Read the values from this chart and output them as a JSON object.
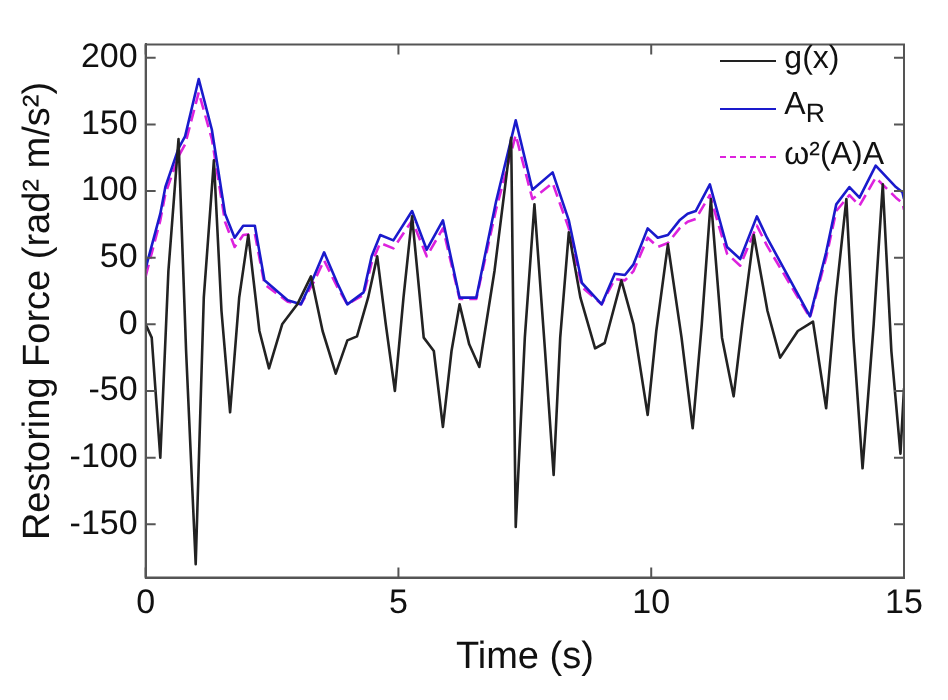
{
  "chart_data": {
    "type": "line",
    "xlabel": "Time (s)",
    "ylabel": "Restoring Force (rad² m/s²)",
    "xlim": [
      0,
      15
    ],
    "xticks": [
      0,
      5,
      10,
      15
    ],
    "ylim": [
      -190,
      210
    ],
    "yticks": [
      -150,
      -100,
      -50,
      0,
      50,
      100,
      150,
      200
    ],
    "grid": false,
    "legend": "top right",
    "marker": "none",
    "series": [
      {
        "name": "g(x)",
        "color": "#222222",
        "line_style": "solid",
        "x": [
          0,
          0.12,
          0.29,
          0.45,
          0.65,
          0.8,
          0.99,
          1.15,
          1.35,
          1.5,
          1.67,
          1.85,
          2.03,
          2.25,
          2.44,
          2.7,
          3.0,
          3.27,
          3.5,
          3.76,
          3.99,
          4.18,
          4.4,
          4.58,
          4.75,
          4.93,
          5.1,
          5.27,
          5.5,
          5.7,
          5.88,
          6.05,
          6.21,
          6.4,
          6.6,
          6.9,
          7.23,
          7.32,
          7.5,
          7.69,
          7.9,
          8.07,
          8.2,
          8.37,
          8.6,
          8.89,
          9.08,
          9.41,
          9.65,
          9.93,
          10.1,
          10.33,
          10.6,
          10.82,
          11.0,
          11.18,
          11.4,
          11.63,
          11.8,
          12.03,
          12.3,
          12.55,
          12.9,
          13.2,
          13.46,
          13.65,
          13.86,
          14.0,
          14.18,
          14.4,
          14.58,
          14.75,
          14.93,
          15
        ],
        "values": [
          0,
          -10,
          -100,
          40,
          139,
          -20,
          -180,
          20,
          123,
          10,
          -66,
          20,
          67,
          -5,
          -33,
          0,
          15,
          36,
          -5,
          -37,
          -12,
          -9,
          20,
          51,
          0,
          -50,
          20,
          81,
          -10,
          -20,
          -77,
          -20,
          15,
          -15,
          -32,
          40,
          140,
          -152,
          -10,
          90,
          -20,
          -113,
          -10,
          69,
          20,
          -18,
          -14,
          33,
          0,
          -68,
          -5,
          60,
          -10,
          -78,
          0,
          94,
          -10,
          -54,
          0,
          67,
          10,
          -25,
          -5,
          2,
          -63,
          20,
          94,
          -10,
          -108,
          0,
          105,
          -20,
          -97,
          -48
        ]
      },
      {
        "name": "A$_{R}$",
        "color": "#1a1acc",
        "line_style": "solid",
        "x": [
          0,
          0.29,
          0.39,
          0.65,
          0.78,
          1.05,
          1.31,
          1.57,
          1.76,
          1.93,
          2.16,
          2.35,
          2.81,
          3.07,
          3.33,
          3.53,
          3.79,
          3.99,
          4.31,
          4.47,
          4.64,
          4.9,
          5.27,
          5.56,
          5.88,
          6.21,
          6.54,
          6.93,
          7.32,
          7.65,
          8.05,
          8.37,
          8.63,
          9.02,
          9.28,
          9.48,
          9.65,
          9.93,
          10.13,
          10.33,
          10.56,
          10.72,
          10.88,
          11.16,
          11.5,
          11.76,
          12.09,
          12.29,
          13.14,
          13.46,
          13.66,
          13.92,
          14.12,
          14.44,
          14.84,
          14.97,
          15
        ],
        "values": [
          42,
          83,
          103,
          132,
          141,
          184,
          146,
          83,
          65,
          74,
          74,
          33,
          18,
          15,
          36,
          54,
          31,
          15,
          24,
          51,
          67,
          63,
          85,
          56,
          78,
          20,
          20,
          92,
          153,
          101,
          114,
          78,
          31,
          15,
          38,
          37,
          45,
          72,
          65,
          67,
          78,
          83,
          85,
          105,
          58,
          49,
          81,
          65,
          6,
          54,
          90,
          103,
          95,
          119,
          103,
          99,
          94
        ]
      },
      {
        "name": "ω²(A)A",
        "color": "#dd22dd",
        "line_style": "dashed",
        "x": [
          0,
          0.29,
          0.39,
          0.65,
          0.78,
          1.05,
          1.31,
          1.57,
          1.76,
          1.93,
          2.16,
          2.35,
          2.81,
          3.07,
          3.33,
          3.53,
          3.79,
          3.99,
          4.31,
          4.47,
          4.64,
          4.9,
          5.27,
          5.56,
          5.88,
          6.21,
          6.54,
          6.93,
          7.32,
          7.65,
          8.05,
          8.37,
          8.63,
          9.02,
          9.28,
          9.48,
          9.65,
          9.93,
          10.13,
          10.33,
          10.56,
          10.72,
          10.88,
          11.16,
          11.5,
          11.76,
          12.09,
          12.29,
          13.14,
          13.46,
          13.66,
          13.92,
          14.12,
          14.44,
          14.84,
          14.97,
          15
        ],
        "values": [
          36,
          78,
          98,
          126,
          135,
          174,
          139,
          77,
          58,
          67,
          68,
          30,
          17,
          15,
          32,
          48,
          28,
          15,
          22,
          46,
          61,
          57,
          78,
          51,
          72,
          19,
          19,
          86,
          142,
          94,
          106,
          72,
          28,
          15,
          34,
          33,
          40,
          65,
          58,
          61,
          72,
          77,
          79,
          97,
          53,
          44,
          74,
          59,
          5,
          50,
          85,
          97,
          89,
          110,
          95,
          91,
          86
        ]
      }
    ]
  }
}
